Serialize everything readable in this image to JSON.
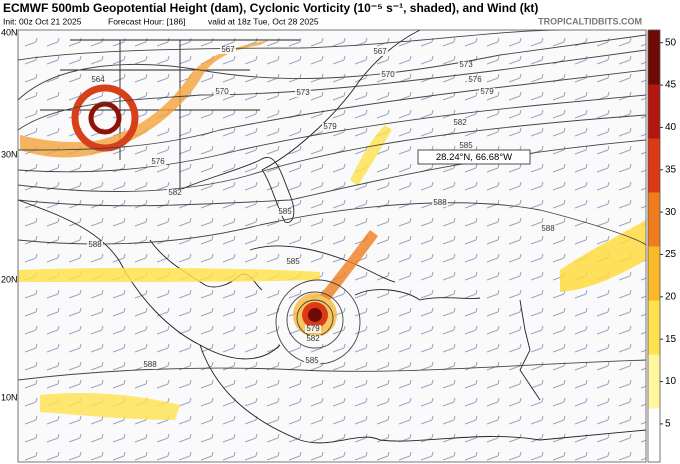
{
  "header": {
    "title": "ECMWF 500mb Geopotential Height (dam), Cyclonic Vorticity (10⁻⁵ s⁻¹, shaded), and Wind (kt)",
    "init": "Init: 00z Oct 21 2025",
    "forecast_hour": "Forecast Hour: [186]",
    "valid": "valid at 18z Tue, Oct 28 2025",
    "site": "TROPICALTIDBITS.COM"
  },
  "map": {
    "lat_labels": [
      "40N",
      "30N",
      "20N",
      "10N"
    ],
    "contour_labels": [
      "567",
      "567",
      "564",
      "570",
      "570",
      "573",
      "576",
      "579",
      "573",
      "576",
      "579",
      "582",
      "582",
      "585",
      "585",
      "588",
      "588",
      "588",
      "585",
      "579",
      "582",
      "585",
      "588"
    ],
    "cursor_label": "28.24°N, 66.68°W"
  },
  "colorbar": {
    "range": [
      0.5,
      51.5
    ],
    "ticks": [
      5,
      10,
      15,
      20,
      25,
      30,
      35,
      40,
      45,
      50
    ],
    "colors": [
      "#ffffff",
      "#fff7a0",
      "#ffe14d",
      "#f9b928",
      "#ef7d1e",
      "#dc3a17",
      "#b3160f",
      "#6e0a06"
    ]
  }
}
